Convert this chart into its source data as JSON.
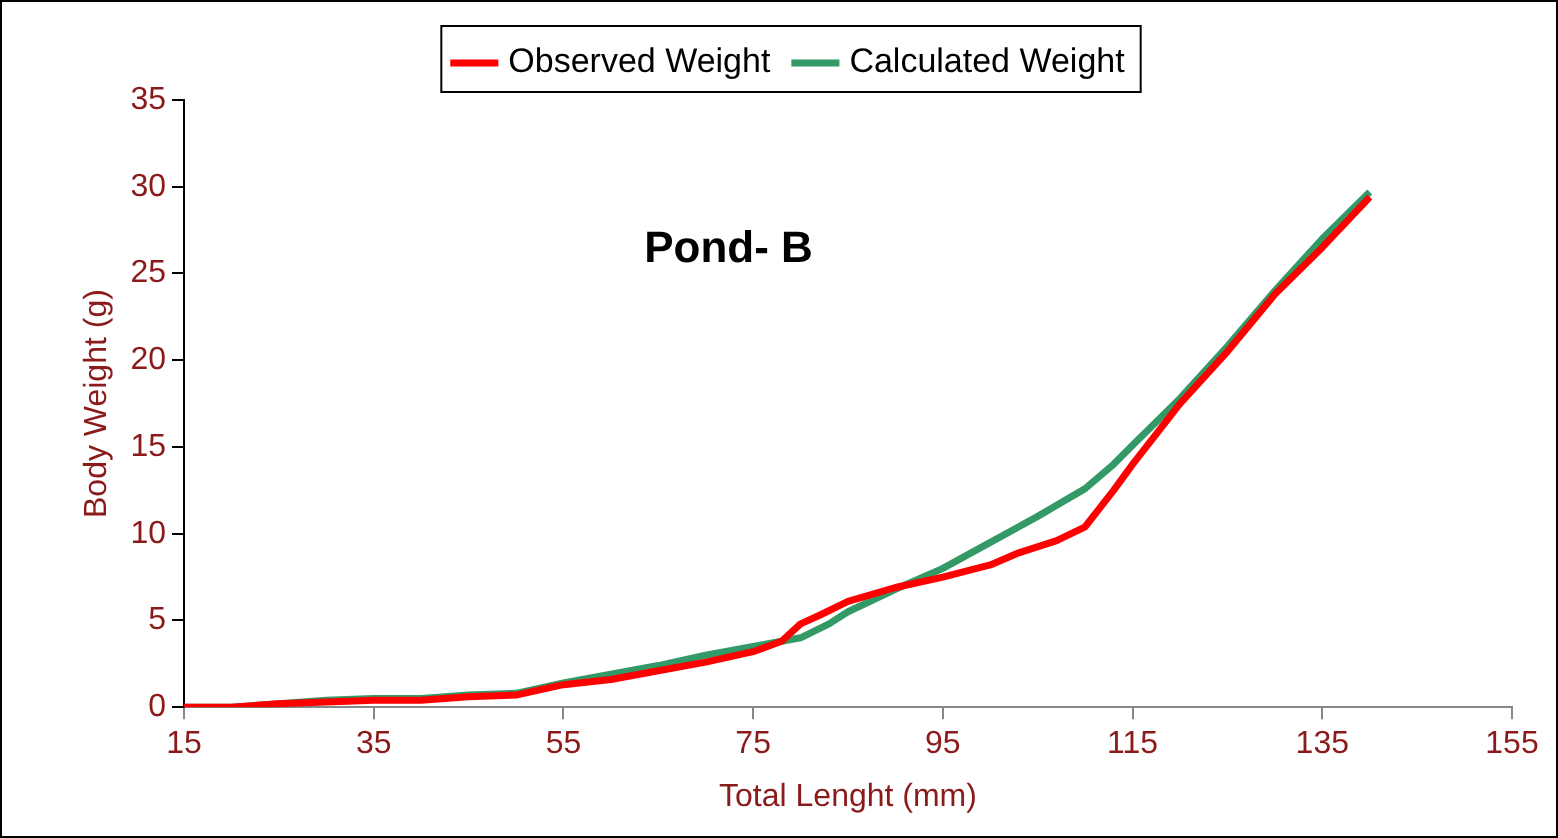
{
  "chart_data": {
    "type": "line",
    "title": "Pond- B",
    "xlabel": "Total Lenght (mm)",
    "ylabel": "Body Weight (g)",
    "xlim": [
      15,
      155
    ],
    "xticks": [
      15,
      35,
      55,
      75,
      95,
      115,
      135,
      155
    ],
    "ylim": [
      0,
      35
    ],
    "yticks": [
      0,
      5,
      10,
      15,
      20,
      25,
      30,
      35
    ],
    "grid": false,
    "legend": "top",
    "marker": "none",
    "line_style": "solid",
    "series": [
      {
        "name": "Observed Weight",
        "color": "#ff0000",
        "x": [
          15,
          20,
          25,
          30,
          35,
          40,
          45,
          50,
          55,
          60,
          65,
          70,
          75,
          78,
          80,
          82,
          85,
          90,
          95,
          100,
          103,
          107,
          110,
          113,
          115,
          120,
          125,
          130,
          135,
          140
        ],
        "values": [
          0,
          0,
          0.2,
          0.3,
          0.4,
          0.4,
          0.6,
          0.7,
          1.3,
          1.6,
          2.1,
          2.6,
          3.2,
          3.8,
          4.8,
          5.3,
          6.1,
          6.9,
          7.5,
          8.2,
          8.9,
          9.6,
          10.4,
          12.5,
          14,
          17.5,
          20.5,
          23.8,
          26.5,
          29.4
        ]
      },
      {
        "name": "Calculated Weight",
        "color": "#339966",
        "x": [
          15,
          20,
          25,
          30,
          35,
          40,
          45,
          50,
          55,
          60,
          65,
          70,
          75,
          80,
          83,
          85,
          90,
          95,
          100,
          105,
          110,
          113,
          115,
          120,
          125,
          130,
          135,
          140
        ],
        "values": [
          0,
          0,
          0.2,
          0.4,
          0.5,
          0.5,
          0.7,
          0.8,
          1.4,
          1.9,
          2.4,
          3,
          3.5,
          4,
          4.8,
          5.5,
          6.8,
          8,
          9.5,
          11,
          12.6,
          14,
          15.1,
          17.8,
          20.8,
          24,
          27,
          29.7
        ]
      }
    ]
  }
}
